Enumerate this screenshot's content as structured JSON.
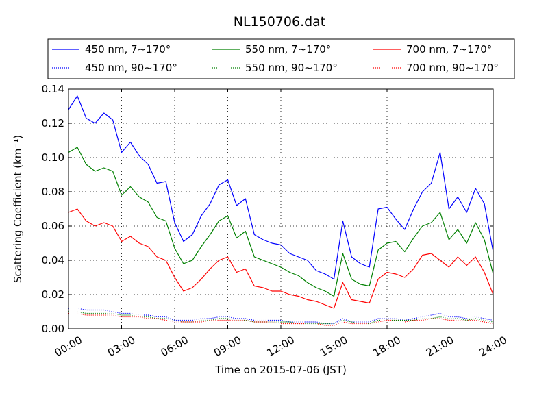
{
  "chart_data": {
    "type": "line",
    "title": "NL150706.dat",
    "xlabel": "Time on 2015-07-06 (JST)",
    "ylabel": "Scattering Coefficient (km⁻¹)",
    "x_unit": "hours",
    "xlim": [
      0,
      24
    ],
    "ylim": [
      0,
      0.14
    ],
    "xtick_labels": [
      "00:00",
      "03:00",
      "06:00",
      "09:00",
      "12:00",
      "15:00",
      "18:00",
      "21:00",
      "24:00"
    ],
    "ytick_labels": [
      "0.00",
      "0.02",
      "0.04",
      "0.06",
      "0.08",
      "0.10",
      "0.12",
      "0.14"
    ],
    "grid": true,
    "legend_position": "top",
    "x": [
      0,
      0.5,
      1,
      1.5,
      2,
      2.5,
      3,
      3.5,
      4,
      4.5,
      5,
      5.5,
      6,
      6.5,
      7,
      7.5,
      8,
      8.5,
      9,
      9.5,
      10,
      10.5,
      11,
      11.5,
      12,
      12.5,
      13,
      13.5,
      14,
      14.5,
      15,
      15.5,
      16,
      16.5,
      17,
      17.5,
      18,
      18.5,
      19,
      19.5,
      20,
      20.5,
      21,
      21.5,
      22,
      22.5,
      23,
      23.5,
      24
    ],
    "series": [
      {
        "name": "450 nm, 7∼170°",
        "color": "#0000ff",
        "style": "solid",
        "values": [
          0.128,
          0.136,
          0.123,
          0.12,
          0.126,
          0.122,
          0.103,
          0.109,
          0.101,
          0.096,
          0.085,
          0.086,
          0.062,
          0.051,
          0.055,
          0.066,
          0.073,
          0.084,
          0.087,
          0.072,
          0.076,
          0.055,
          0.052,
          0.05,
          0.049,
          0.044,
          0.042,
          0.04,
          0.034,
          0.032,
          0.029,
          0.063,
          0.042,
          0.038,
          0.036,
          0.07,
          0.071,
          0.064,
          0.058,
          0.07,
          0.08,
          0.085,
          0.103,
          0.07,
          0.077,
          0.068,
          0.082,
          0.073,
          0.045
        ]
      },
      {
        "name": "450 nm, 90∼170°",
        "color": "#0000ff",
        "style": "dotted",
        "values": [
          0.012,
          0.012,
          0.011,
          0.011,
          0.011,
          0.01,
          0.009,
          0.009,
          0.008,
          0.008,
          0.007,
          0.007,
          0.005,
          0.005,
          0.005,
          0.006,
          0.006,
          0.007,
          0.007,
          0.006,
          0.006,
          0.005,
          0.005,
          0.005,
          0.005,
          0.004,
          0.004,
          0.004,
          0.004,
          0.003,
          0.003,
          0.006,
          0.004,
          0.004,
          0.004,
          0.006,
          0.006,
          0.006,
          0.005,
          0.006,
          0.007,
          0.008,
          0.009,
          0.007,
          0.007,
          0.006,
          0.007,
          0.006,
          0.005
        ]
      },
      {
        "name": "550 nm, 7∼170°",
        "color": "#008000",
        "style": "solid",
        "values": [
          0.103,
          0.106,
          0.096,
          0.092,
          0.094,
          0.092,
          0.078,
          0.083,
          0.077,
          0.074,
          0.065,
          0.063,
          0.047,
          0.038,
          0.04,
          0.048,
          0.055,
          0.063,
          0.066,
          0.053,
          0.057,
          0.042,
          0.04,
          0.038,
          0.036,
          0.033,
          0.031,
          0.027,
          0.024,
          0.022,
          0.019,
          0.044,
          0.029,
          0.026,
          0.025,
          0.046,
          0.05,
          0.051,
          0.045,
          0.053,
          0.06,
          0.062,
          0.068,
          0.052,
          0.058,
          0.05,
          0.062,
          0.052,
          0.032
        ]
      },
      {
        "name": "550 nm, 90∼170°",
        "color": "#008000",
        "style": "dotted",
        "values": [
          0.01,
          0.01,
          0.009,
          0.009,
          0.009,
          0.009,
          0.008,
          0.008,
          0.007,
          0.007,
          0.006,
          0.006,
          0.005,
          0.004,
          0.004,
          0.005,
          0.005,
          0.006,
          0.006,
          0.005,
          0.005,
          0.004,
          0.004,
          0.004,
          0.004,
          0.004,
          0.003,
          0.003,
          0.003,
          0.003,
          0.003,
          0.005,
          0.004,
          0.003,
          0.003,
          0.005,
          0.005,
          0.005,
          0.005,
          0.005,
          0.006,
          0.006,
          0.007,
          0.006,
          0.006,
          0.005,
          0.006,
          0.005,
          0.004
        ]
      },
      {
        "name": "700 nm, 7∼170°",
        "color": "#ff0000",
        "style": "solid",
        "values": [
          0.068,
          0.07,
          0.063,
          0.06,
          0.062,
          0.06,
          0.051,
          0.054,
          0.05,
          0.048,
          0.042,
          0.04,
          0.03,
          0.022,
          0.024,
          0.029,
          0.035,
          0.04,
          0.042,
          0.033,
          0.035,
          0.025,
          0.024,
          0.022,
          0.022,
          0.02,
          0.019,
          0.017,
          0.016,
          0.014,
          0.012,
          0.027,
          0.017,
          0.016,
          0.015,
          0.029,
          0.033,
          0.032,
          0.03,
          0.035,
          0.043,
          0.044,
          0.04,
          0.036,
          0.042,
          0.037,
          0.042,
          0.033,
          0.02
        ]
      },
      {
        "name": "700 nm, 90∼170°",
        "color": "#ff0000",
        "style": "dotted",
        "values": [
          0.009,
          0.009,
          0.008,
          0.008,
          0.008,
          0.008,
          0.007,
          0.007,
          0.007,
          0.006,
          0.006,
          0.005,
          0.004,
          0.004,
          0.004,
          0.004,
          0.005,
          0.005,
          0.005,
          0.005,
          0.005,
          0.004,
          0.004,
          0.004,
          0.003,
          0.003,
          0.003,
          0.003,
          0.003,
          0.002,
          0.002,
          0.004,
          0.003,
          0.003,
          0.003,
          0.004,
          0.005,
          0.005,
          0.004,
          0.005,
          0.005,
          0.006,
          0.006,
          0.005,
          0.005,
          0.005,
          0.005,
          0.004,
          0.003
        ]
      }
    ]
  }
}
